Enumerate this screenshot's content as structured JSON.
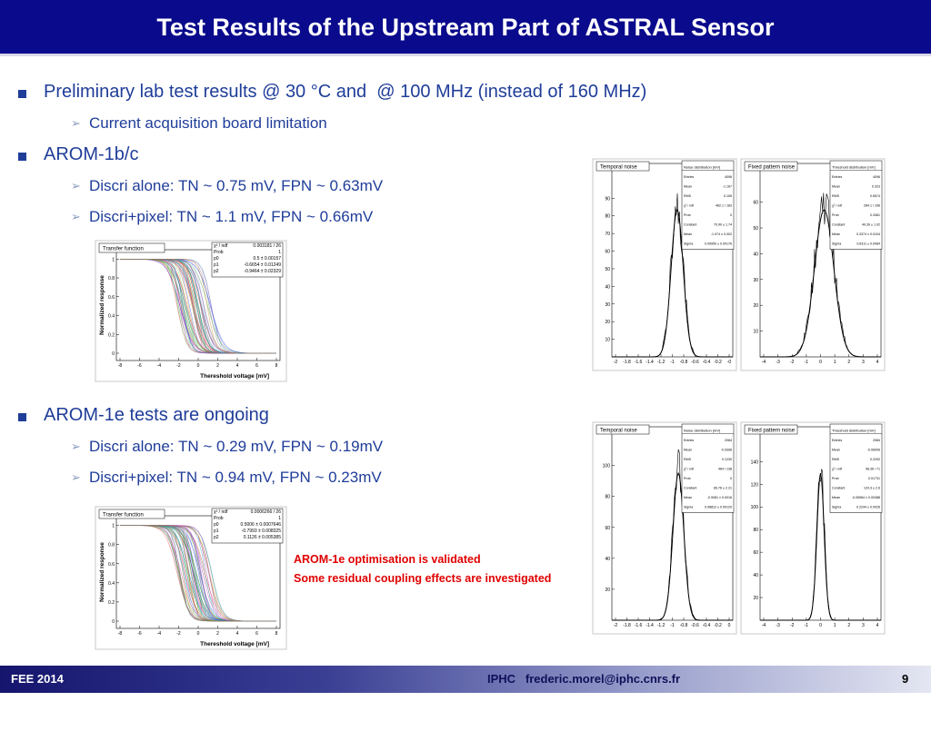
{
  "header": {
    "title": "Test Results of the Upstream Part of ASTRAL Sensor"
  },
  "bullets": [
    {
      "text": "Preliminary lab test results @ 30 °C and  @ 100 MHz (instead of 160 MHz)",
      "sub": [
        "Current acquisition board limitation"
      ]
    },
    {
      "text": "AROM-1b/c",
      "sub": [
        "Discri alone: TN ~ 0.75 mV, FPN ~ 0.63mV",
        "Discri+pixel: TN ~ 1.1 mV, FPN ~ 0.66mV"
      ]
    },
    {
      "text": "AROM-1e tests are ongoing",
      "sub": [
        "Discri alone: TN ~ 0.29 mV, FPN ~ 0.19mV",
        "Discri+pixel: TN ~ 0.94 mV, FPN ~ 0.23mV"
      ]
    }
  ],
  "figures": [
    {
      "kind": "transfer",
      "title": "Transfer function",
      "ylabel": "Normalized response",
      "xlabel": "Thereshold voltage [mV]",
      "xticks": [
        "-8",
        "-6",
        "-4",
        "-2",
        "0",
        "2",
        "4",
        "6",
        "8"
      ],
      "yticks": [
        "0",
        "0.2",
        "0.4",
        "0.6",
        "0.8",
        "1"
      ],
      "stats": [
        [
          "χ² / ndf",
          "0.003181 / 26"
        ],
        [
          "Prob",
          "1"
        ],
        [
          "p0",
          "0.5 ± 0.00157"
        ],
        [
          "p1",
          "-0.6654 ± 0.01249"
        ],
        [
          "p2",
          "-0.9464 ± 0.02329"
        ]
      ]
    },
    {
      "kind": "transfer",
      "title": "Transfer function",
      "ylabel": "Normalized response",
      "xlabel": "Thereshold voltage [mV]",
      "xticks": [
        "-8",
        "-6",
        "-4",
        "-2",
        "0",
        "2",
        "4",
        "6",
        "8"
      ],
      "yticks": [
        "0",
        "0.2",
        "0.4",
        "0.6",
        "0.8",
        "1"
      ],
      "stats": [
        [
          "χ² / ndf",
          "0.0006266 / 26"
        ],
        [
          "Prob",
          "1"
        ],
        [
          "p0",
          "0.5006 ± 0.0007646"
        ],
        [
          "p1",
          "-0.7993 ± 0.008325"
        ],
        [
          "p2",
          "0.1126 ± 0.005385"
        ]
      ]
    },
    {
      "kind": "histogram",
      "title": "Temporal noise",
      "stats_title": "Noise distribution [mV]",
      "xticks": [
        "-2",
        "-1.8",
        "-1.6",
        "-1.4",
        "-1.2",
        "-1",
        "-0.8",
        "-0.6",
        "-0.4",
        "-0.2",
        "-0"
      ],
      "yticks": [
        "10",
        "20",
        "30",
        "40",
        "50",
        "60",
        "70",
        "80",
        "90"
      ],
      "stats": [
        [
          "Entries",
          "4096"
        ],
        [
          "Mean",
          "-1.167"
        ],
        [
          "RMS",
          "0.105"
        ],
        [
          "χ² / ndf",
          "462.1 / 183"
        ],
        [
          "Prob",
          "0"
        ],
        [
          "Constant",
          "70.90 ± 1.74"
        ],
        [
          "Mean",
          "-1.074 ± 0.002"
        ],
        [
          "Sigma",
          "0.09950 ± 0.00176"
        ]
      ]
    },
    {
      "kind": "histogram",
      "title": "Fixed pattern noise",
      "stats_title": "Threshold distribution [mV]",
      "xticks": [
        "-4",
        "-3",
        "-2",
        "-1",
        "0",
        "1",
        "2",
        "3",
        "4"
      ],
      "yticks": [
        "10",
        "20",
        "30",
        "40",
        "50",
        "60"
      ],
      "stats": [
        [
          "Entries",
          "4096"
        ],
        [
          "Mean",
          "0.323"
        ],
        [
          "RMS",
          "0.6574"
        ],
        [
          "χ² / ndf",
          "284.1 / 106"
        ],
        [
          "Prob",
          "0.3381"
        ],
        [
          "Constant",
          "49.39 ± 1.02"
        ],
        [
          "Mean",
          "0.3374 ± 0.0104"
        ],
        [
          "Sigma",
          "0.6311 ± 0.0084"
        ]
      ]
    },
    {
      "kind": "histogram",
      "title": "Temporal noise",
      "stats_title": "Noise distribution [mV]",
      "xticks": [
        "-2",
        "-1.8",
        "-1.6",
        "-1.4",
        "-1.2",
        "-1",
        "-0.8",
        "-0.6",
        "-0.4",
        "-0.2",
        "0"
      ],
      "yticks": [
        "20",
        "40",
        "60",
        "80",
        "100"
      ],
      "stats": [
        [
          "Entries",
          "2084"
        ],
        [
          "Mean",
          "-0.9396"
        ],
        [
          "RMS",
          "0.1230"
        ],
        [
          "χ² / ndf",
          "464 / 138"
        ],
        [
          "Prob",
          "0"
        ],
        [
          "Constant",
          "89.76 ± 2.21"
        ],
        [
          "Mean",
          "-0.9081 ± 0.0016"
        ],
        [
          "Sigma",
          "0.08812 ± 0.00120"
        ]
      ]
    },
    {
      "kind": "histogram",
      "title": "Fixed pattern noise",
      "stats_title": "Threshold distribution [mV]",
      "xticks": [
        "-4",
        "-3",
        "-2",
        "-1",
        "0",
        "1",
        "2",
        "3",
        "4"
      ],
      "yticks": [
        "20",
        "40",
        "60",
        "80",
        "100",
        "120",
        "140"
      ],
      "stats": [
        [
          "Entries",
          "2084"
        ],
        [
          "Mean",
          "-0.06006"
        ],
        [
          "RMS",
          "0.2292"
        ],
        [
          "χ² / ndf",
          "98.36 / 71"
        ],
        [
          "Prob",
          "0.01731"
        ],
        [
          "Constant",
          "124.3 ± 2.6"
        ],
        [
          "Mean",
          "-0.05964 ± 0.00388"
        ],
        [
          "Sigma",
          "0.2244 ± 0.0026"
        ]
      ]
    }
  ],
  "note": [
    "AROM-1e optimisation is validated",
    "Some residual coupling effects are investigated"
  ],
  "footer": {
    "left": "FEE 2014",
    "center": "IPHC   frederic.morel@iphc.cnrs.fr",
    "page": "9"
  }
}
